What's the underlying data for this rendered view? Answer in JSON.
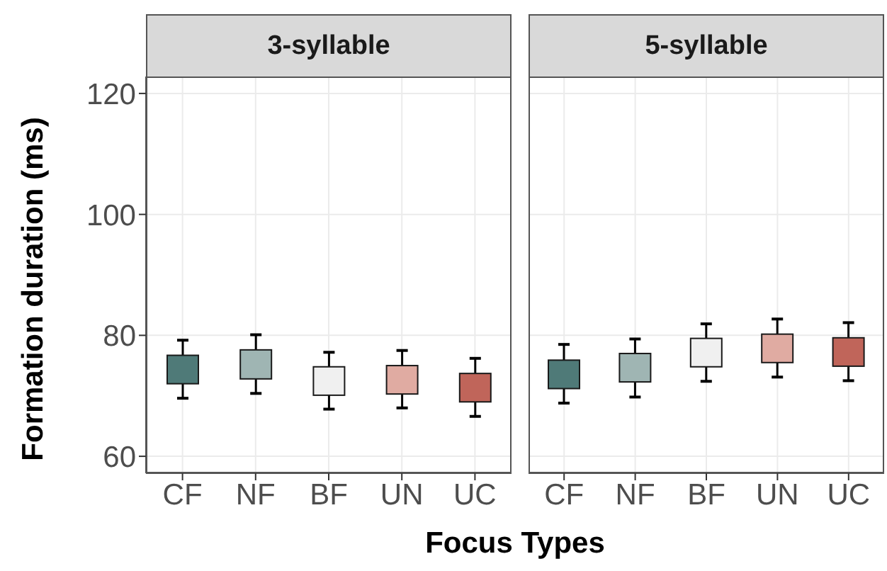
{
  "chart_data": [
    {
      "type": "box",
      "title": "3-syllable",
      "xlabel": "Focus Types",
      "ylabel": "Formation duration (ms)",
      "categories": [
        "CF",
        "NF",
        "BF",
        "UN",
        "UC"
      ],
      "boxes": [
        {
          "low": 69.6,
          "q1": 72.0,
          "q3": 76.7,
          "high": 79.2
        },
        {
          "low": 70.4,
          "q1": 72.8,
          "q3": 77.6,
          "high": 80.1
        },
        {
          "low": 67.8,
          "q1": 70.1,
          "q3": 74.8,
          "high": 77.2
        },
        {
          "low": 68.0,
          "q1": 70.3,
          "q3": 75.0,
          "high": 77.5
        },
        {
          "low": 66.6,
          "q1": 69.0,
          "q3": 73.7,
          "high": 76.2
        }
      ],
      "colors": [
        "#4f7a78",
        "#9fb5b3",
        "#f0f0f0",
        "#e0aba2",
        "#c0655a"
      ],
      "ylim": [
        57.2,
        122.8
      ],
      "yticks": [
        60,
        80,
        100,
        120
      ],
      "grid": true
    },
    {
      "type": "box",
      "title": "5-syllable",
      "categories": [
        "CF",
        "NF",
        "BF",
        "UN",
        "UC"
      ],
      "boxes": [
        {
          "low": 68.8,
          "q1": 71.2,
          "q3": 75.9,
          "high": 78.5
        },
        {
          "low": 69.8,
          "q1": 72.3,
          "q3": 77.0,
          "high": 79.4
        },
        {
          "low": 72.4,
          "q1": 74.8,
          "q3": 79.5,
          "high": 81.9
        },
        {
          "low": 73.1,
          "q1": 75.5,
          "q3": 80.2,
          "high": 82.7
        },
        {
          "low": 72.5,
          "q1": 74.9,
          "q3": 79.6,
          "high": 82.1
        }
      ],
      "colors": [
        "#4f7a78",
        "#9fb5b3",
        "#f0f0f0",
        "#e0aba2",
        "#c0655a"
      ],
      "ylim": [
        57.2,
        122.8
      ],
      "yticks": [
        60,
        80,
        100,
        120
      ],
      "grid": true,
      "tick_labels": "x"
    }
  ]
}
